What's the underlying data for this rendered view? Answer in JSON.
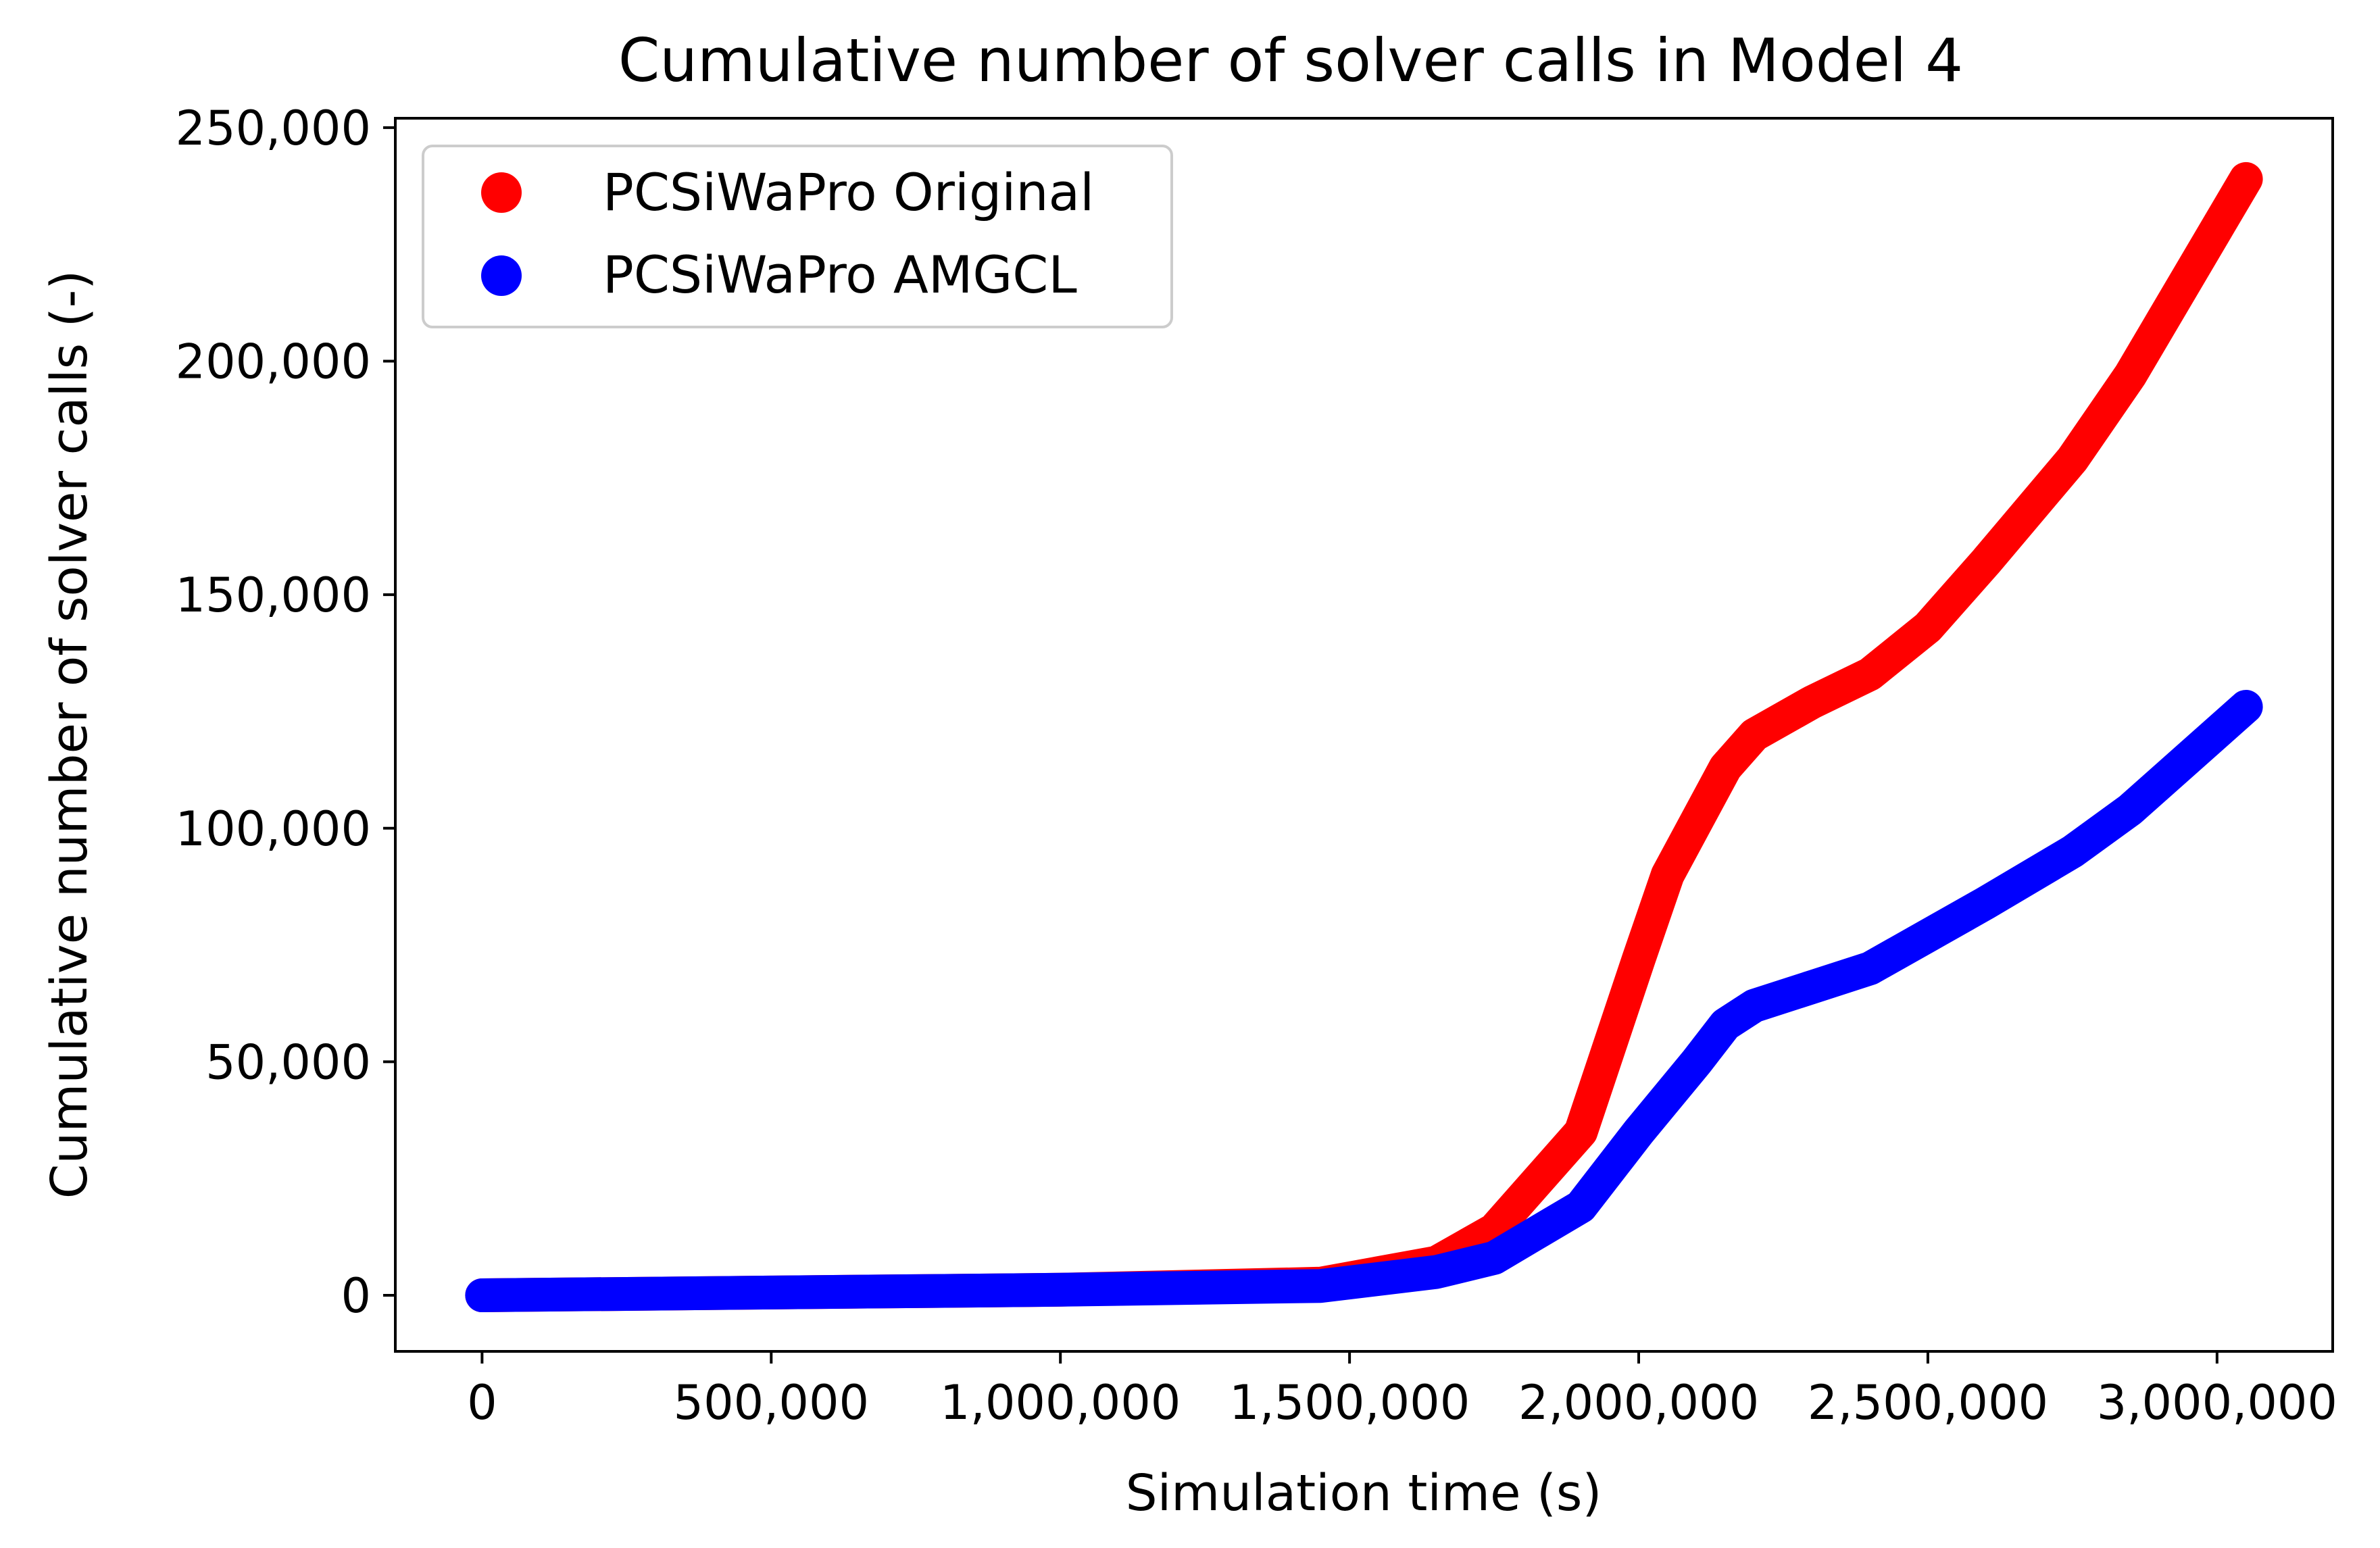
{
  "chart_data": {
    "type": "line",
    "title": "Cumulative number of solver calls in Model 4",
    "xlabel": "Simulation time (s)",
    "ylabel": "Cumulative number of solver calls (-)",
    "xlim": [
      -150000,
      3200000
    ],
    "ylim": [
      -12000,
      252000
    ],
    "x_ticks": [
      0,
      500000,
      1000000,
      1500000,
      2000000,
      2500000,
      3000000
    ],
    "x_tick_labels": [
      "0",
      "500,000",
      "1,000,000",
      "1,500,000",
      "2,000,000",
      "2,500,000",
      "3,000,000"
    ],
    "y_ticks": [
      0,
      50000,
      100000,
      150000,
      200000,
      250000
    ],
    "y_tick_labels": [
      "0",
      "50,000",
      "100,000",
      "150,000",
      "200,000",
      "250,000"
    ],
    "grid": false,
    "legend": {
      "position": "upper-left"
    },
    "series": [
      {
        "name": "PCSiWaPro Original",
        "color": "#ff0000",
        "x": [
          0,
          500000,
          1000000,
          1450000,
          1650000,
          1750000,
          1900000,
          2000000,
          2050000,
          2150000,
          2200000,
          2300000,
          2400000,
          2500000,
          2600000,
          2750000,
          2850000,
          3050000
        ],
        "y": [
          0,
          600,
          1200,
          2500,
          7000,
          14000,
          35000,
          72000,
          90000,
          113000,
          120000,
          127000,
          133000,
          143000,
          157000,
          179000,
          197000,
          239000
        ]
      },
      {
        "name": "PCSiWaPro AMGCL",
        "color": "#0000ff",
        "x": [
          0,
          500000,
          1000000,
          1450000,
          1650000,
          1750000,
          1900000,
          2000000,
          2100000,
          2150000,
          2200000,
          2300000,
          2400000,
          2500000,
          2600000,
          2750000,
          2850000,
          3050000
        ],
        "y": [
          0,
          600,
          1200,
          2000,
          5000,
          8000,
          19000,
          35000,
          50000,
          58000,
          62000,
          66000,
          70000,
          77000,
          84000,
          95000,
          104000,
          126000
        ]
      }
    ]
  }
}
